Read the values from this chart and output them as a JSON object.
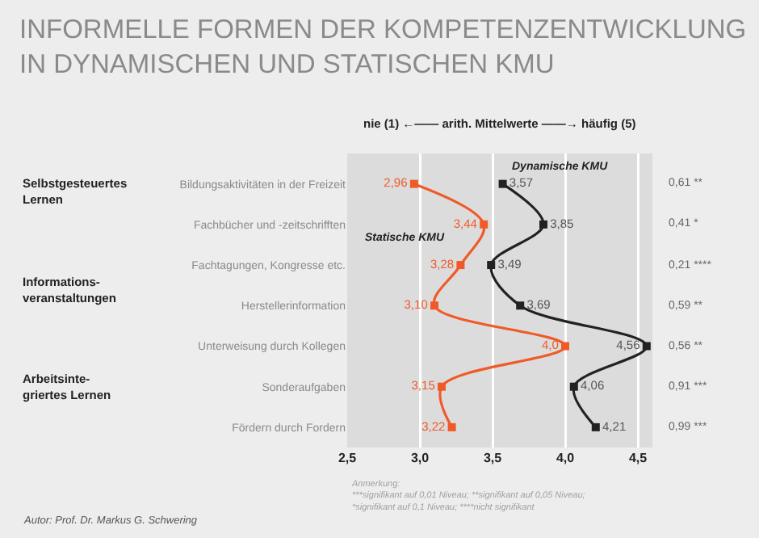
{
  "chart_data": {
    "type": "line",
    "orientation": "horizontal",
    "title": "INFORMELLE FORMEN DER KOMPETENZENTWICKLUNG\nIN DYNAMISCHEN UND STATISCHEN KMU",
    "xlabel": "nie (1) ←—— arith. Mittelwerte ——→ häufig (5)",
    "categories": [
      "Bildungsaktivitäten in der Freizeit",
      "Fachbücher und -zeitschrifften",
      "Fachtagungen, Kongresse etc.",
      "Herstellerinformation",
      "Unterweisung durch Kollegen",
      "Sonderaufgaben",
      "Fördern durch Fordern"
    ],
    "y2_categories": [
      "0,61 **",
      "0,41 *",
      "0,21 ****",
      "0,59 **",
      "0,56 **",
      "0,91 ***",
      "0,99 ***"
    ],
    "series": [
      {
        "name": "Statische KMU",
        "color": "#f05a28",
        "values": [
          2.96,
          3.44,
          3.28,
          3.1,
          4.0,
          3.15,
          3.22
        ],
        "value_labels": [
          "2,96",
          "3,44",
          "3,28",
          "3,10",
          "4,0",
          "3,15",
          "3,22"
        ]
      },
      {
        "name": "Dynamische KMU",
        "color": "#222222",
        "values": [
          3.57,
          3.85,
          3.49,
          3.69,
          4.56,
          4.06,
          4.21
        ],
        "value_labels": [
          "3,57",
          "3,85",
          "3,49",
          "3,69",
          "4,56",
          "4,06",
          "4,21"
        ]
      }
    ],
    "xlim": [
      2.5,
      4.6
    ],
    "xticks": [
      {
        "value": 2.5,
        "label": "2,5"
      },
      {
        "value": 3.0,
        "label": "3,0"
      },
      {
        "value": 3.5,
        "label": "3,5"
      },
      {
        "value": 4.0,
        "label": "4,0"
      },
      {
        "value": 4.5,
        "label": "4,5"
      }
    ],
    "grid": "x",
    "legend": false,
    "marker": "square",
    "line_style": "solid",
    "annotations": [
      "Selbstgesteuertes\nLernen",
      "Informations-\nveranstaltungen",
      "Arbeitsinte-\ngriertes Lernen",
      "Anmerkung:\n***signifikant auf 0,01 Niveau; **signifikant auf 0,05 Niveau;\n*signifikant auf 0,1 Niveau; ****nicht signifikant",
      "Autor: Prof. Dr. Markus G. Schwering"
    ]
  }
}
